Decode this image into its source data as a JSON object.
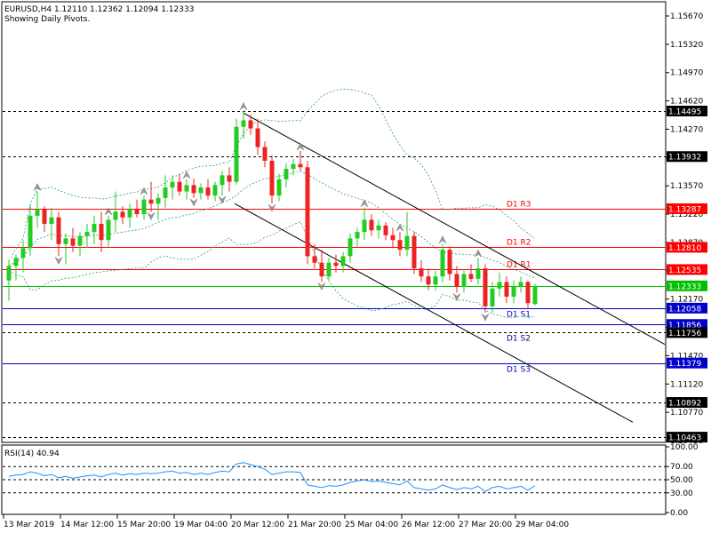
{
  "header": {
    "symbol_line": "EURUSD,H4  1.12110 1.12362 1.12094 1.12333",
    "subtitle": "Showing Daily Pivots."
  },
  "rsi": {
    "label": "RSI(14) 40.94",
    "ticks": [
      "100.00",
      "70.00",
      "50.00",
      "30.00",
      "0.00"
    ]
  },
  "price_axis_ticks": [
    "1.15670",
    "1.15320",
    "1.14970",
    "1.14620",
    "1.14270",
    "1.13920",
    "1.13570",
    "1.13220",
    "1.12870",
    "1.12520",
    "1.12170",
    "1.11820",
    "1.11470",
    "1.11120",
    "1.10770",
    "1.10420"
  ],
  "date_labels": [
    "13 Mar 2019",
    "14 Mar 12:00",
    "15 Mar 20:00",
    "19 Mar 04:00",
    "20 Mar 12:00",
    "21 Mar 20:00",
    "25 Mar 04:00",
    "26 Mar 12:00",
    "27 Mar 20:00",
    "29 Mar 04:00"
  ],
  "levels": [
    {
      "value": "1.14495",
      "label": "",
      "style": "dash",
      "color": "#000000"
    },
    {
      "value": "1.13932",
      "label": "",
      "style": "dash",
      "color": "#000000"
    },
    {
      "value": "1.13287",
      "label": "D1  R3",
      "style": "solid",
      "color": "#ff0000"
    },
    {
      "value": "1.12810",
      "label": "D1  R2",
      "style": "solid",
      "color": "#ff0000"
    },
    {
      "value": "1.12535",
      "label": "D1  R1",
      "style": "solid",
      "color": "#ff0000"
    },
    {
      "value": "1.12333",
      "label": "",
      "style": "solid",
      "color": "#00c000"
    },
    {
      "value": "1.12058",
      "label": "D1  S1",
      "style": "solid",
      "color": "#0000c8"
    },
    {
      "value": "1.11856",
      "label": "",
      "style": "solid",
      "color": "#0000c8"
    },
    {
      "value": "1.11756",
      "label": "D1  S2",
      "style": "dash",
      "color": "#000000"
    },
    {
      "value": "1.11379",
      "label": "D1  S3",
      "style": "solid",
      "color": "#0000c8"
    },
    {
      "value": "1.10892",
      "label": "",
      "style": "dash",
      "color": "#000000"
    },
    {
      "value": "1.10463",
      "label": "",
      "style": "dash",
      "color": "#000000"
    }
  ],
  "colors": {
    "bull": "#22cc22",
    "bear": "#ee2222",
    "band": "#2e9e6a",
    "rsi_line": "#1e90ff",
    "grid_dash": "#000000"
  },
  "candles": [
    {
      "t": 0,
      "o": 1.124,
      "h": 1.1265,
      "l": 1.1215,
      "c": 1.1258
    },
    {
      "t": 1,
      "o": 1.1258,
      "h": 1.1272,
      "l": 1.124,
      "c": 1.1268
    },
    {
      "t": 2,
      "o": 1.1268,
      "h": 1.129,
      "l": 1.125,
      "c": 1.128
    },
    {
      "t": 3,
      "o": 1.128,
      "h": 1.1335,
      "l": 1.127,
      "c": 1.132
    },
    {
      "t": 4,
      "o": 1.132,
      "h": 1.135,
      "l": 1.1305,
      "c": 1.1328
    },
    {
      "t": 5,
      "o": 1.1328,
      "h": 1.1332,
      "l": 1.13,
      "c": 1.131
    },
    {
      "t": 6,
      "o": 1.131,
      "h": 1.133,
      "l": 1.129,
      "c": 1.1318
    },
    {
      "t": 7,
      "o": 1.1318,
      "h": 1.1325,
      "l": 1.127,
      "c": 1.1285
    },
    {
      "t": 8,
      "o": 1.1285,
      "h": 1.1298,
      "l": 1.126,
      "c": 1.1292
    },
    {
      "t": 9,
      "o": 1.1292,
      "h": 1.1305,
      "l": 1.1275,
      "c": 1.1283
    },
    {
      "t": 10,
      "o": 1.1283,
      "h": 1.13,
      "l": 1.127,
      "c": 1.1295
    },
    {
      "t": 11,
      "o": 1.1295,
      "h": 1.131,
      "l": 1.128,
      "c": 1.13
    },
    {
      "t": 12,
      "o": 1.13,
      "h": 1.132,
      "l": 1.1285,
      "c": 1.131
    },
    {
      "t": 13,
      "o": 1.131,
      "h": 1.1325,
      "l": 1.1275,
      "c": 1.129
    },
    {
      "t": 14,
      "o": 1.129,
      "h": 1.132,
      "l": 1.128,
      "c": 1.1315
    },
    {
      "t": 15,
      "o": 1.1315,
      "h": 1.135,
      "l": 1.13,
      "c": 1.1325
    },
    {
      "t": 16,
      "o": 1.1325,
      "h": 1.1332,
      "l": 1.131,
      "c": 1.1318
    },
    {
      "t": 17,
      "o": 1.1318,
      "h": 1.1335,
      "l": 1.1305,
      "c": 1.1328
    },
    {
      "t": 18,
      "o": 1.1328,
      "h": 1.134,
      "l": 1.1318,
      "c": 1.1322
    },
    {
      "t": 19,
      "o": 1.1322,
      "h": 1.1345,
      "l": 1.1315,
      "c": 1.134
    },
    {
      "t": 20,
      "o": 1.134,
      "h": 1.1362,
      "l": 1.1325,
      "c": 1.1335
    },
    {
      "t": 21,
      "o": 1.1335,
      "h": 1.1348,
      "l": 1.1315,
      "c": 1.1342
    },
    {
      "t": 22,
      "o": 1.1342,
      "h": 1.137,
      "l": 1.133,
      "c": 1.1355
    },
    {
      "t": 23,
      "o": 1.1355,
      "h": 1.137,
      "l": 1.134,
      "c": 1.1362
    },
    {
      "t": 24,
      "o": 1.1362,
      "h": 1.1372,
      "l": 1.1345,
      "c": 1.135
    },
    {
      "t": 25,
      "o": 1.135,
      "h": 1.1365,
      "l": 1.134,
      "c": 1.1358
    },
    {
      "t": 26,
      "o": 1.1358,
      "h": 1.1366,
      "l": 1.1342,
      "c": 1.1348
    },
    {
      "t": 27,
      "o": 1.1348,
      "h": 1.136,
      "l": 1.134,
      "c": 1.1355
    },
    {
      "t": 28,
      "o": 1.1355,
      "h": 1.1365,
      "l": 1.134,
      "c": 1.1345
    },
    {
      "t": 29,
      "o": 1.1345,
      "h": 1.1362,
      "l": 1.1338,
      "c": 1.1358
    },
    {
      "t": 30,
      "o": 1.1358,
      "h": 1.1375,
      "l": 1.1345,
      "c": 1.137
    },
    {
      "t": 31,
      "o": 1.137,
      "h": 1.138,
      "l": 1.135,
      "c": 1.1362
    },
    {
      "t": 32,
      "o": 1.1362,
      "h": 1.144,
      "l": 1.1358,
      "c": 1.143
    },
    {
      "t": 33,
      "o": 1.143,
      "h": 1.145,
      "l": 1.1415,
      "c": 1.1438
    },
    {
      "t": 34,
      "o": 1.1438,
      "h": 1.1445,
      "l": 1.142,
      "c": 1.1428
    },
    {
      "t": 35,
      "o": 1.1428,
      "h": 1.144,
      "l": 1.1395,
      "c": 1.1405
    },
    {
      "t": 36,
      "o": 1.1405,
      "h": 1.1412,
      "l": 1.138,
      "c": 1.1388
    },
    {
      "t": 37,
      "o": 1.1388,
      "h": 1.1395,
      "l": 1.1335,
      "c": 1.1345
    },
    {
      "t": 38,
      "o": 1.1345,
      "h": 1.1372,
      "l": 1.1338,
      "c": 1.1365
    },
    {
      "t": 39,
      "o": 1.1365,
      "h": 1.1385,
      "l": 1.1355,
      "c": 1.1378
    },
    {
      "t": 40,
      "o": 1.1378,
      "h": 1.139,
      "l": 1.137,
      "c": 1.1384
    },
    {
      "t": 41,
      "o": 1.1384,
      "h": 1.14,
      "l": 1.1375,
      "c": 1.138
    },
    {
      "t": 42,
      "o": 1.138,
      "h": 1.1388,
      "l": 1.126,
      "c": 1.127
    },
    {
      "t": 43,
      "o": 1.127,
      "h": 1.1285,
      "l": 1.1255,
      "c": 1.1262
    },
    {
      "t": 44,
      "o": 1.1262,
      "h": 1.1278,
      "l": 1.1238,
      "c": 1.1245
    },
    {
      "t": 45,
      "o": 1.1245,
      "h": 1.1268,
      "l": 1.124,
      "c": 1.1262
    },
    {
      "t": 46,
      "o": 1.1262,
      "h": 1.1272,
      "l": 1.125,
      "c": 1.1258
    },
    {
      "t": 47,
      "o": 1.1258,
      "h": 1.1275,
      "l": 1.125,
      "c": 1.127
    },
    {
      "t": 48,
      "o": 1.127,
      "h": 1.1298,
      "l": 1.1262,
      "c": 1.1292
    },
    {
      "t": 49,
      "o": 1.1292,
      "h": 1.1305,
      "l": 1.1282,
      "c": 1.13
    },
    {
      "t": 50,
      "o": 1.13,
      "h": 1.133,
      "l": 1.129,
      "c": 1.1315
    },
    {
      "t": 51,
      "o": 1.1315,
      "h": 1.1322,
      "l": 1.1295,
      "c": 1.1302
    },
    {
      "t": 52,
      "o": 1.1302,
      "h": 1.1315,
      "l": 1.1292,
      "c": 1.1308
    },
    {
      "t": 53,
      "o": 1.1308,
      "h": 1.1312,
      "l": 1.129,
      "c": 1.1296
    },
    {
      "t": 54,
      "o": 1.1296,
      "h": 1.1305,
      "l": 1.128,
      "c": 1.129
    },
    {
      "t": 55,
      "o": 1.129,
      "h": 1.13,
      "l": 1.127,
      "c": 1.1278
    },
    {
      "t": 56,
      "o": 1.1278,
      "h": 1.1325,
      "l": 1.127,
      "c": 1.1295
    },
    {
      "t": 57,
      "o": 1.1295,
      "h": 1.13,
      "l": 1.1248,
      "c": 1.1255
    },
    {
      "t": 58,
      "o": 1.1255,
      "h": 1.1265,
      "l": 1.1238,
      "c": 1.1245
    },
    {
      "t": 59,
      "o": 1.1245,
      "h": 1.1255,
      "l": 1.1228,
      "c": 1.1235
    },
    {
      "t": 60,
      "o": 1.1235,
      "h": 1.1252,
      "l": 1.1228,
      "c": 1.1245
    },
    {
      "t": 61,
      "o": 1.1245,
      "h": 1.1285,
      "l": 1.1238,
      "c": 1.1278
    },
    {
      "t": 62,
      "o": 1.1278,
      "h": 1.1282,
      "l": 1.124,
      "c": 1.1248
    },
    {
      "t": 63,
      "o": 1.1248,
      "h": 1.1258,
      "l": 1.1225,
      "c": 1.1232
    },
    {
      "t": 64,
      "o": 1.1232,
      "h": 1.1252,
      "l": 1.1225,
      "c": 1.1248
    },
    {
      "t": 65,
      "o": 1.1248,
      "h": 1.126,
      "l": 1.1238,
      "c": 1.1242
    },
    {
      "t": 66,
      "o": 1.1242,
      "h": 1.1268,
      "l": 1.1235,
      "c": 1.1255
    },
    {
      "t": 67,
      "o": 1.1255,
      "h": 1.126,
      "l": 1.12,
      "c": 1.1208
    },
    {
      "t": 68,
      "o": 1.1208,
      "h": 1.1238,
      "l": 1.12,
      "c": 1.123
    },
    {
      "t": 69,
      "o": 1.123,
      "h": 1.125,
      "l": 1.122,
      "c": 1.1238
    },
    {
      "t": 70,
      "o": 1.1238,
      "h": 1.1245,
      "l": 1.1212,
      "c": 1.122
    },
    {
      "t": 71,
      "o": 1.122,
      "h": 1.124,
      "l": 1.1212,
      "c": 1.1232
    },
    {
      "t": 72,
      "o": 1.1232,
      "h": 1.1245,
      "l": 1.1225,
      "c": 1.1238
    },
    {
      "t": 73,
      "o": 1.1238,
      "h": 1.124,
      "l": 1.1205,
      "c": 1.1212
    },
    {
      "t": 74,
      "o": 1.1211,
      "h": 1.1236,
      "l": 1.1209,
      "c": 1.1233
    }
  ],
  "rsi_values": [
    55,
    57,
    58,
    62,
    60,
    56,
    58,
    53,
    55,
    52,
    54,
    56,
    57,
    54,
    58,
    60,
    57,
    59,
    58,
    60,
    59,
    60,
    62,
    63,
    60,
    61,
    58,
    60,
    58,
    61,
    63,
    62,
    74,
    76,
    73,
    70,
    66,
    58,
    60,
    62,
    62,
    61,
    42,
    40,
    38,
    41,
    40,
    42,
    46,
    48,
    50,
    47,
    48,
    46,
    44,
    42,
    48,
    38,
    36,
    34,
    36,
    42,
    38,
    35,
    38,
    36,
    40,
    32,
    38,
    40,
    36,
    38,
    40,
    34,
    41
  ]
}
